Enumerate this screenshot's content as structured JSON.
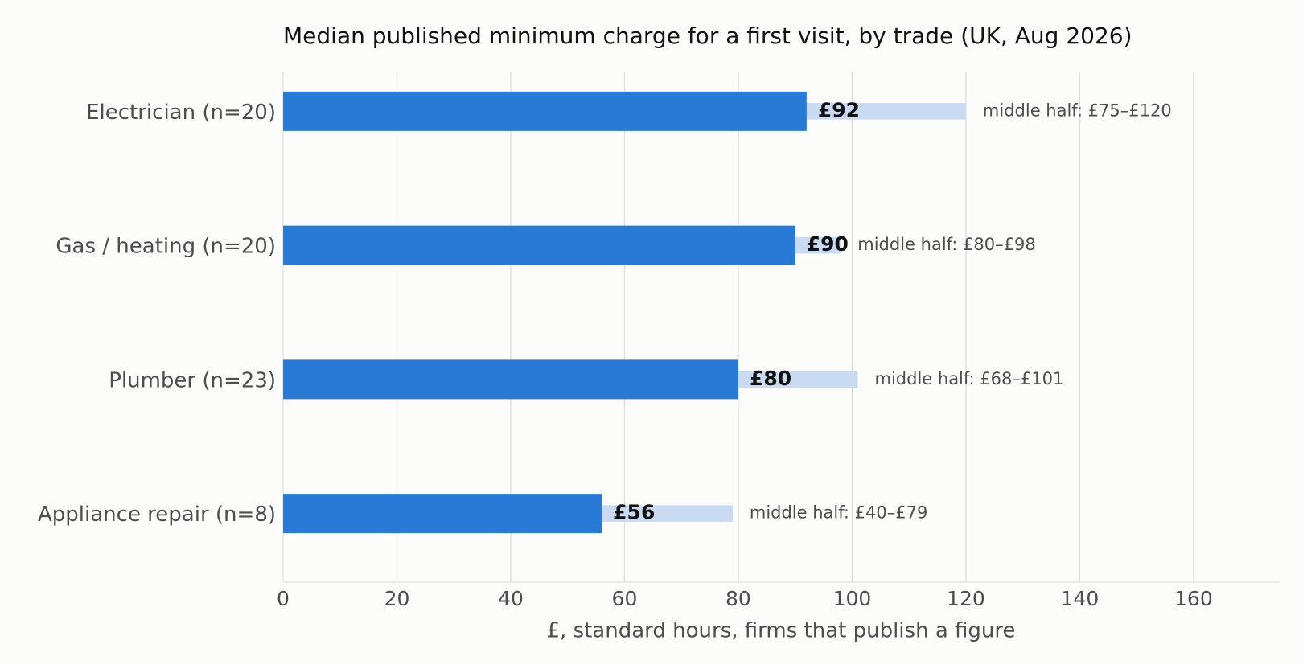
{
  "chart_data": {
    "type": "bar",
    "orientation": "horizontal",
    "title": "Median published minimum charge for a first visit, by trade (UK, Aug 2026)",
    "xlabel": "£, standard hours, firms that publish a figure",
    "categories": [
      "Electrician (n=20)",
      "Gas / heating (n=20)",
      "Plumber (n=23)",
      "Appliance repair (n=8)"
    ],
    "values": [
      92,
      90,
      80,
      56
    ],
    "value_labels": [
      "£92",
      "£90",
      "£80",
      "£56"
    ],
    "color": "#2979d6",
    "low": [
      75,
      80,
      68,
      40
    ],
    "high": [
      120,
      98,
      101,
      79
    ],
    "range_labels": [
      "middle half: £75–£120",
      "middle half: £80–£98",
      "middle half: £68–£101",
      "middle half: £40–£79"
    ],
    "range_color": "#c9daf3",
    "xlim": [
      0,
      175
    ],
    "xticks": [
      0,
      20,
      40,
      60,
      80,
      100,
      120,
      140,
      160
    ],
    "grid": true
  }
}
